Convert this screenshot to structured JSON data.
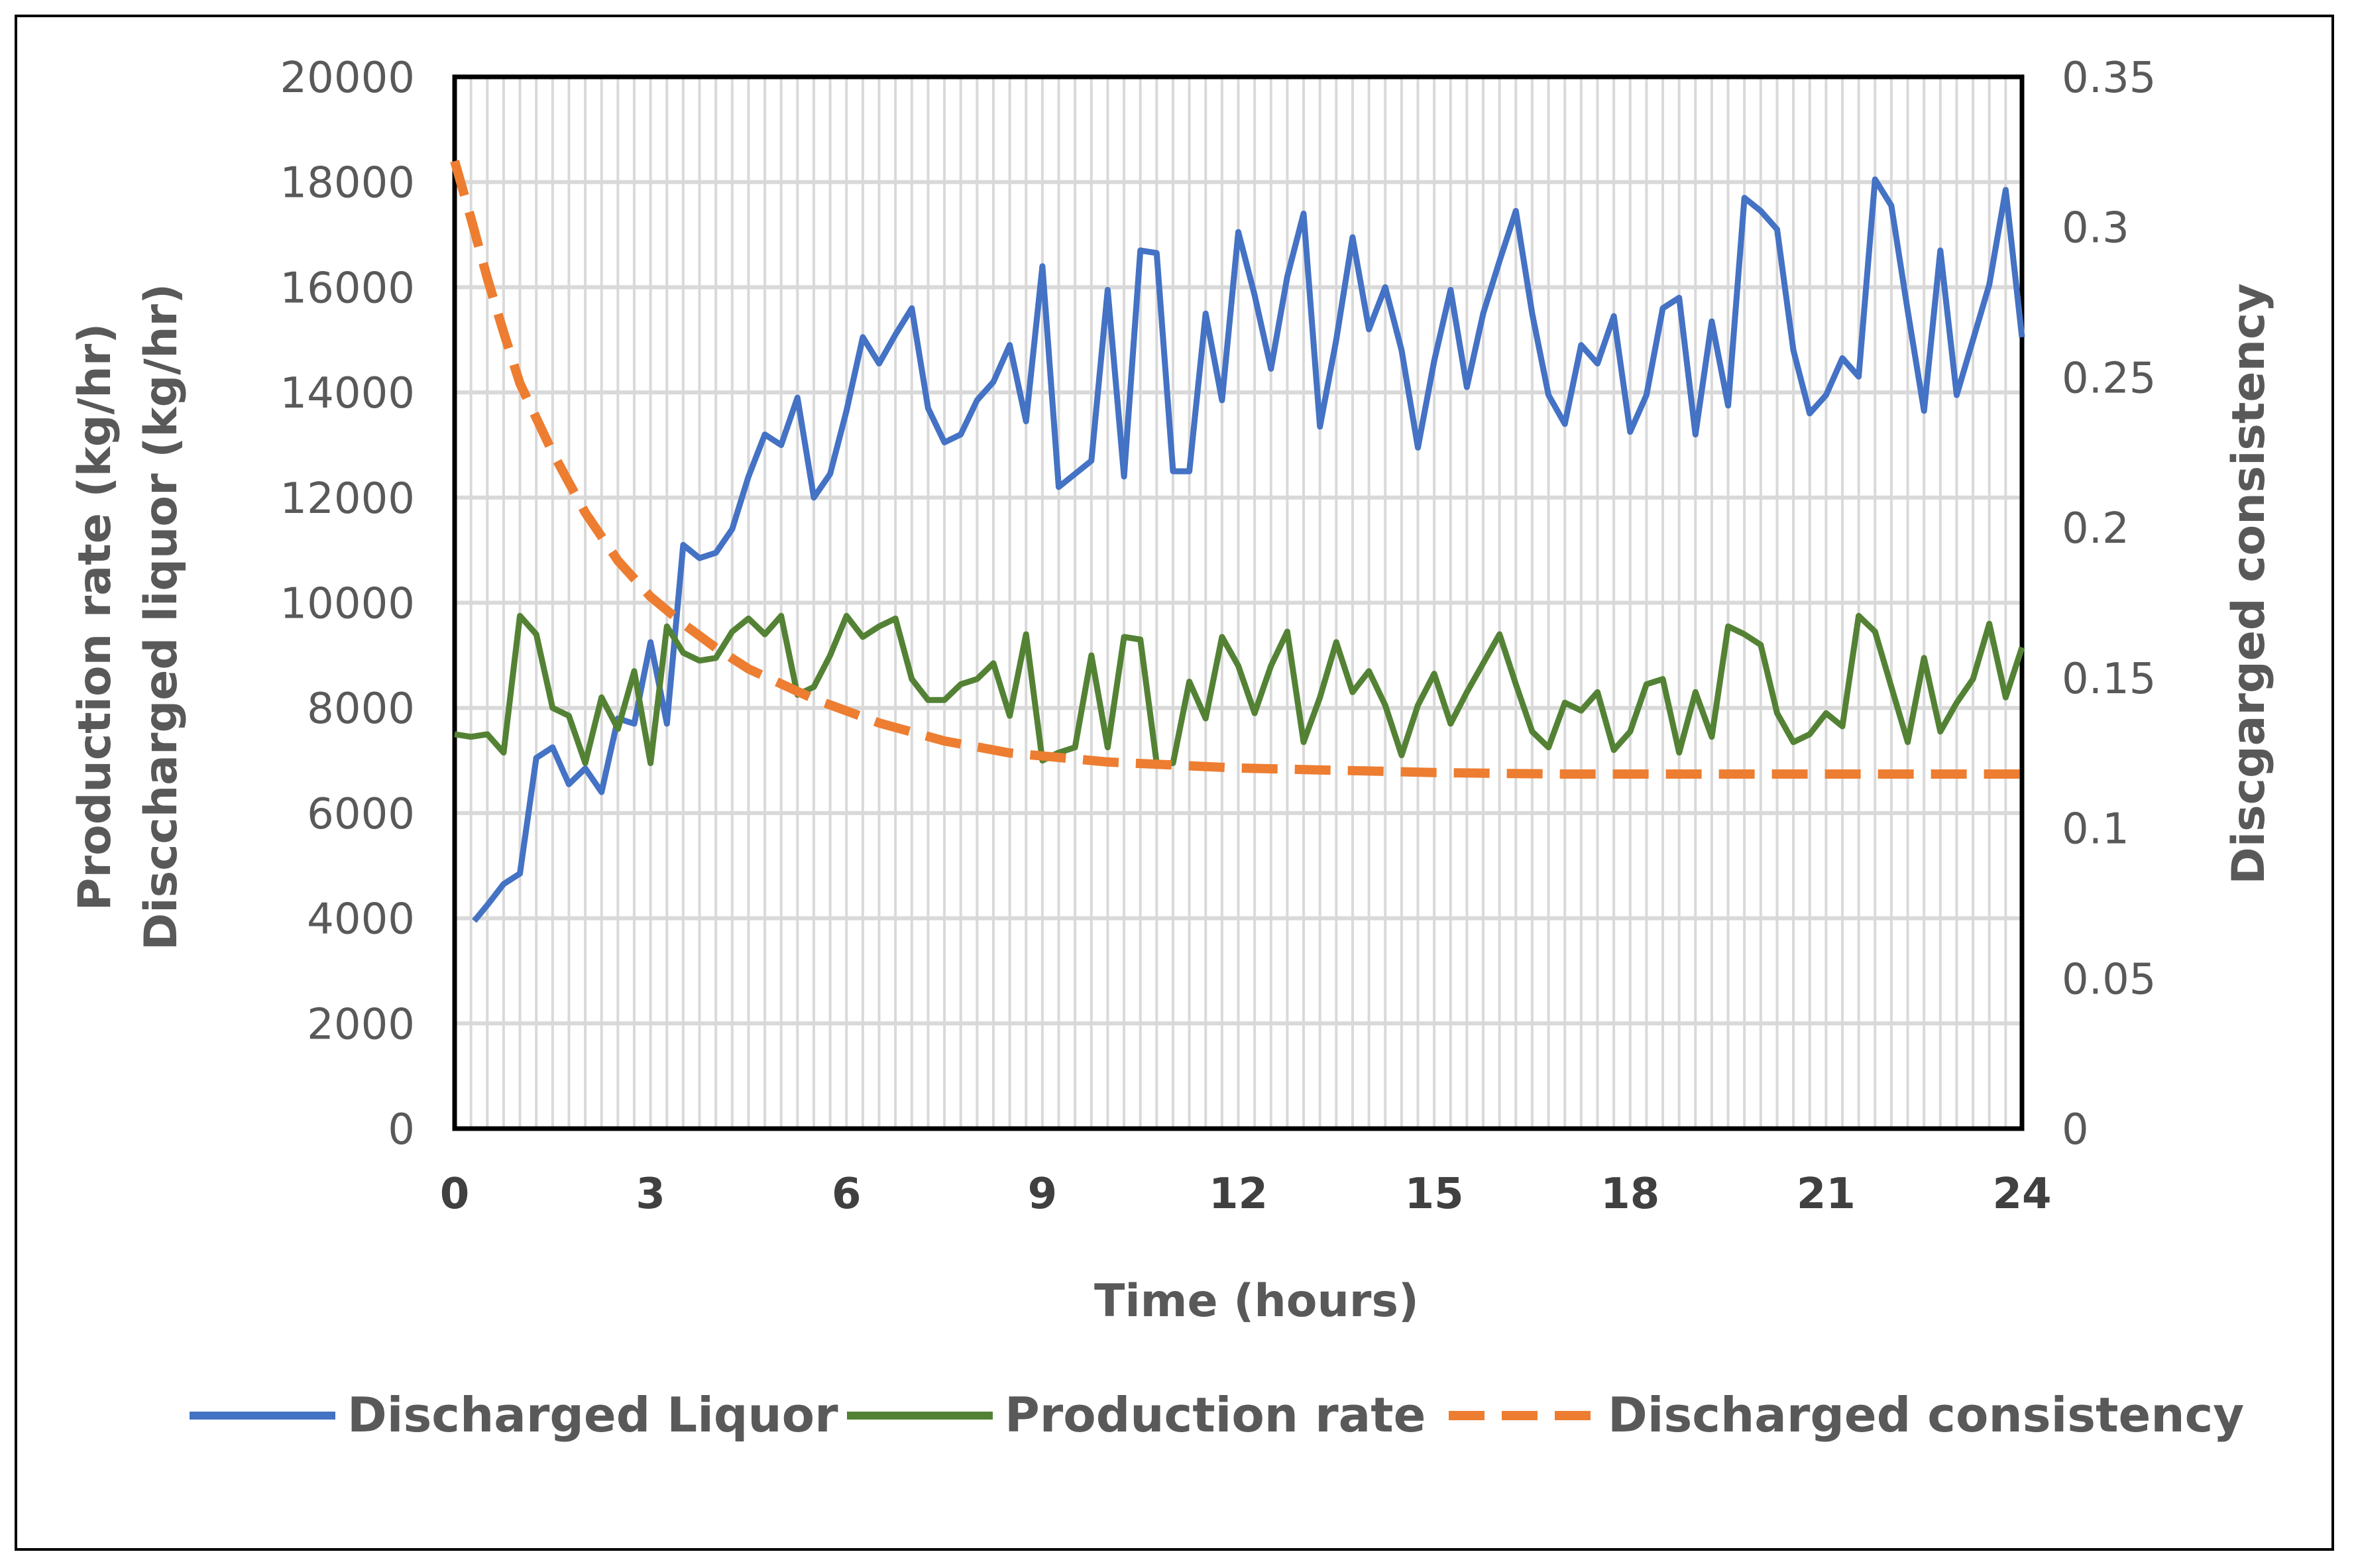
{
  "chart_data": {
    "type": "line",
    "xlabel": "Time (hours)",
    "ylabel_left": [
      "Production rate (kg/hr)",
      "Disccharged liquor (kg/hr)"
    ],
    "ylabel_right": "Discgarged consistency",
    "xlim": [
      0,
      24
    ],
    "ylim_left": [
      0,
      20000
    ],
    "ylim_right": [
      0,
      0.35
    ],
    "x_ticks": [
      "0",
      "3",
      "6",
      "9",
      "12",
      "15",
      "18",
      "21",
      "24"
    ],
    "left_ticks": [
      "0",
      "2000",
      "4000",
      "6000",
      "8000",
      "10000",
      "12000",
      "14000",
      "16000",
      "18000",
      "20000"
    ],
    "right_ticks": [
      "0",
      "0.05",
      "0.1",
      "0.15",
      "0.2",
      "0.25",
      "0.3",
      "0.35"
    ],
    "grid": true,
    "legend_position": "bottom",
    "series": [
      {
        "name": "Discharged Liquor",
        "axis": "left",
        "color": "#4472C4",
        "style": "solid",
        "x": [
          0.3,
          0.5,
          0.75,
          1.0,
          1.25,
          1.5,
          1.75,
          2.0,
          2.25,
          2.5,
          2.75,
          3.0,
          3.25,
          3.5,
          3.75,
          4.0,
          4.25,
          4.5,
          4.75,
          5.0,
          5.25,
          5.5,
          5.75,
          6.0,
          6.25,
          6.5,
          6.75,
          7.0,
          7.25,
          7.5,
          7.75,
          8.0,
          8.25,
          8.5,
          8.75,
          9.0,
          9.25,
          9.5,
          9.75,
          10.0,
          10.25,
          10.5,
          10.75,
          11.0,
          11.25,
          11.5,
          11.75,
          12.0,
          12.25,
          12.5,
          12.75,
          13.0,
          13.25,
          13.5,
          13.75,
          14.0,
          14.25,
          14.5,
          14.75,
          15.0,
          15.25,
          15.5,
          15.75,
          16.0,
          16.25,
          16.5,
          16.75,
          17.0,
          17.25,
          17.5,
          17.75,
          18.0,
          18.25,
          18.5,
          18.75,
          19.0,
          19.25,
          19.5,
          19.75,
          20.0,
          20.25,
          20.5,
          20.75,
          21.0,
          21.25,
          21.5,
          21.75,
          22.0,
          22.25,
          22.5,
          22.75,
          23.0,
          23.25,
          23.5,
          23.75,
          24.0
        ],
        "values": [
          3950,
          4250,
          4650,
          4850,
          7050,
          7250,
          6550,
          6850,
          6400,
          7800,
          7700,
          9250,
          7700,
          11100,
          10850,
          10950,
          11400,
          12400,
          13200,
          13000,
          13900,
          12000,
          12450,
          13650,
          15050,
          14550,
          15100,
          15600,
          13700,
          13050,
          13200,
          13850,
          14200,
          14900,
          13450,
          16400,
          12200,
          12450,
          12700,
          15950,
          12400,
          16700,
          16650,
          12500,
          12500,
          15500,
          13850,
          17050,
          15850,
          14450,
          16200,
          17400,
          13350,
          15000,
          16950,
          15200,
          16000,
          14800,
          12950,
          14600,
          15950,
          14100,
          15500,
          16500,
          17450,
          15500,
          13950,
          13400,
          14900,
          14550,
          15450,
          13250,
          13950,
          15600,
          15800,
          13200,
          15350,
          13750,
          17700,
          17450,
          17100,
          14800,
          13600,
          13950,
          14650,
          14300,
          18050,
          17550,
          15550,
          13650,
          16700,
          13950,
          15000,
          16050,
          17850,
          15050
        ]
      },
      {
        "name": "Production rate",
        "axis": "left",
        "color": "#548235",
        "style": "solid",
        "x": [
          0.0,
          0.25,
          0.5,
          0.75,
          1.0,
          1.25,
          1.5,
          1.75,
          2.0,
          2.25,
          2.5,
          2.75,
          3.0,
          3.25,
          3.5,
          3.75,
          4.0,
          4.25,
          4.5,
          4.75,
          5.0,
          5.25,
          5.5,
          5.75,
          6.0,
          6.25,
          6.5,
          6.75,
          7.0,
          7.25,
          7.5,
          7.75,
          8.0,
          8.25,
          8.5,
          8.75,
          9.0,
          9.25,
          9.5,
          9.75,
          10.0,
          10.25,
          10.5,
          10.75,
          11.0,
          11.25,
          11.5,
          11.75,
          12.0,
          12.25,
          12.5,
          12.75,
          13.0,
          13.25,
          13.5,
          13.75,
          14.0,
          14.25,
          14.5,
          14.75,
          15.0,
          15.25,
          15.5,
          15.75,
          16.0,
          16.25,
          16.5,
          16.75,
          17.0,
          17.25,
          17.5,
          17.75,
          18.0,
          18.25,
          18.5,
          18.75,
          19.0,
          19.25,
          19.5,
          19.75,
          20.0,
          20.25,
          20.5,
          20.75,
          21.0,
          21.25,
          21.5,
          21.75,
          22.0,
          22.25,
          22.5,
          22.75,
          23.0,
          23.25,
          23.5,
          23.75,
          24.0
        ],
        "values": [
          7500,
          7450,
          7500,
          7150,
          9750,
          9400,
          8000,
          7850,
          6950,
          8200,
          7600,
          8700,
          6950,
          9550,
          9050,
          8900,
          8950,
          9450,
          9700,
          9400,
          9750,
          8250,
          8400,
          9000,
          9750,
          9350,
          9550,
          9700,
          8550,
          8150,
          8150,
          8450,
          8550,
          8850,
          7850,
          9400,
          7000,
          7150,
          7250,
          9000,
          7250,
          9350,
          9300,
          6950,
          6950,
          8500,
          7800,
          9350,
          8800,
          7900,
          8800,
          9450,
          7350,
          8200,
          9250,
          8300,
          8700,
          8050,
          7100,
          8050,
          8650,
          7700,
          8300,
          8850,
          9400,
          8450,
          7550,
          7250,
          8100,
          7950,
          8300,
          7200,
          7550,
          8450,
          8550,
          7150,
          8300,
          7450,
          9550,
          9400,
          9200,
          7900,
          7350,
          7500,
          7900,
          7650,
          9750,
          9450,
          8400,
          7350,
          8950,
          7550,
          8100,
          8550,
          9600,
          8200,
          9150
        ]
      },
      {
        "name": "Discharged consistency",
        "axis": "right",
        "color": "#ED7D31",
        "style": "dashed",
        "x": [
          0.0,
          0.25,
          0.5,
          0.75,
          1.0,
          1.5,
          2.0,
          2.5,
          3.0,
          3.5,
          4.0,
          4.5,
          5.0,
          5.5,
          6.0,
          6.5,
          7.0,
          7.5,
          8.0,
          8.5,
          9.0,
          9.5,
          10.0,
          11.0,
          12.0,
          13.0,
          14.0,
          15.0,
          16.0,
          17.0,
          18.0,
          19.0,
          20.0,
          21.0,
          22.0,
          23.0,
          24.0
        ],
        "values": [
          0.322,
          0.303,
          0.283,
          0.265,
          0.248,
          0.225,
          0.205,
          0.189,
          0.177,
          0.168,
          0.16,
          0.153,
          0.148,
          0.143,
          0.139,
          0.135,
          0.132,
          0.129,
          0.127,
          0.125,
          0.124,
          0.123,
          0.122,
          0.121,
          0.12,
          0.1195,
          0.119,
          0.1185,
          0.1182,
          0.118,
          0.118,
          0.118,
          0.118,
          0.118,
          0.118,
          0.118,
          0.118
        ]
      }
    ]
  }
}
